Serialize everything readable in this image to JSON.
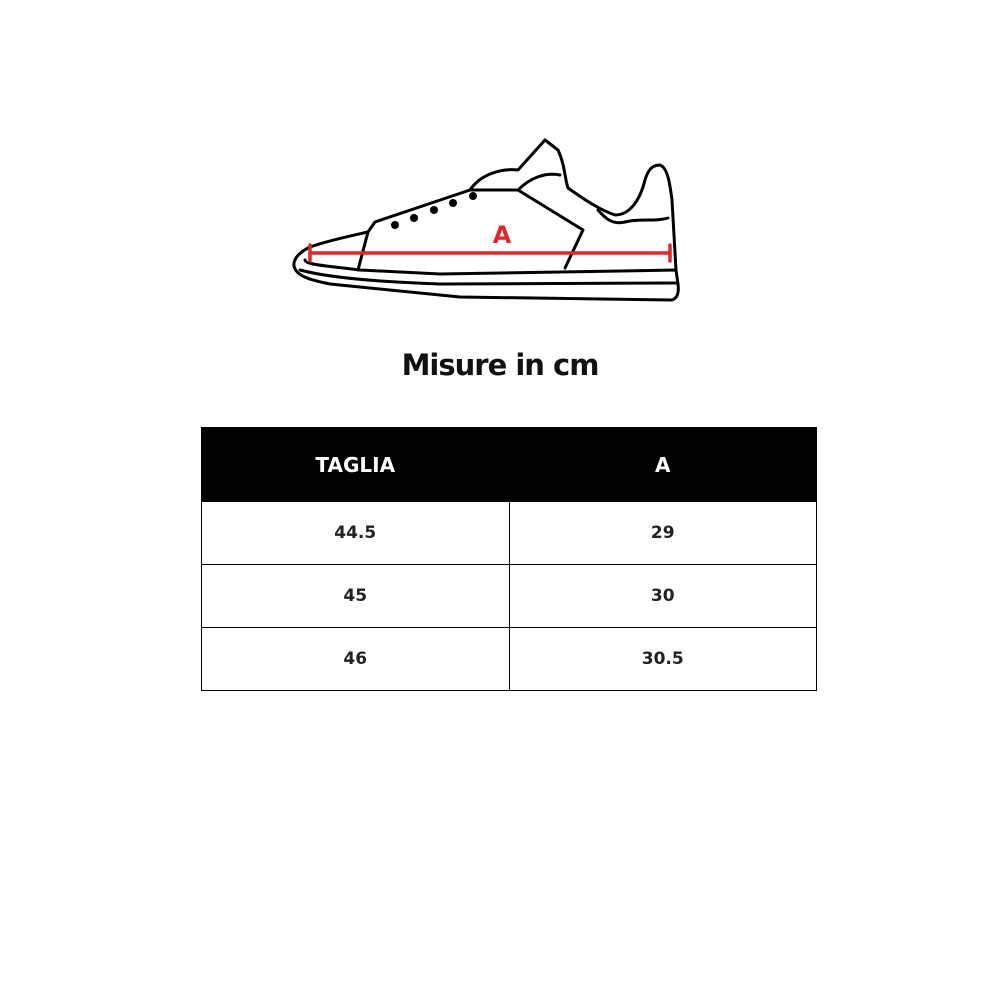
{
  "illustration": {
    "measure_label": "A",
    "measure_color": "#e0262b"
  },
  "title": "Misure in cm",
  "table": {
    "headers": [
      "TAGLIA",
      "A"
    ],
    "rows": [
      [
        "44.5",
        "29"
      ],
      [
        "45",
        "30"
      ],
      [
        "46",
        "30.5"
      ]
    ]
  }
}
